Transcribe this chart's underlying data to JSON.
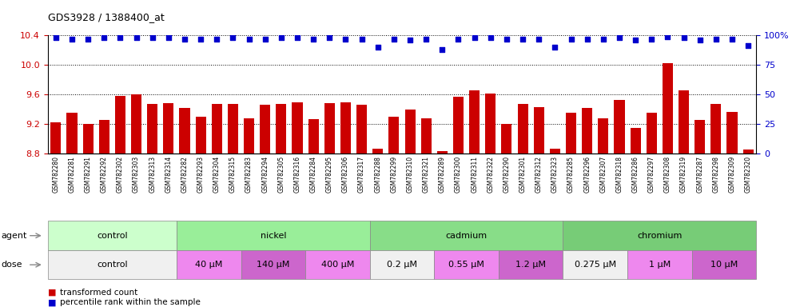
{
  "title": "GDS3928 / 1388400_at",
  "samples": [
    "GSM782280",
    "GSM782281",
    "GSM782291",
    "GSM782292",
    "GSM782302",
    "GSM782303",
    "GSM782313",
    "GSM782314",
    "GSM782282",
    "GSM782293",
    "GSM782304",
    "GSM782315",
    "GSM782283",
    "GSM782294",
    "GSM782305",
    "GSM782316",
    "GSM782284",
    "GSM782295",
    "GSM782306",
    "GSM782317",
    "GSM782288",
    "GSM782299",
    "GSM782310",
    "GSM782321",
    "GSM782289",
    "GSM782300",
    "GSM782311",
    "GSM782322",
    "GSM782290",
    "GSM782301",
    "GSM782312",
    "GSM782323",
    "GSM782285",
    "GSM782296",
    "GSM782307",
    "GSM782318",
    "GSM782286",
    "GSM782297",
    "GSM782308",
    "GSM782319",
    "GSM782287",
    "GSM782298",
    "GSM782309",
    "GSM782320"
  ],
  "bar_values": [
    9.22,
    9.35,
    9.2,
    9.25,
    9.58,
    9.6,
    9.47,
    9.48,
    9.42,
    9.3,
    9.47,
    9.47,
    9.28,
    9.46,
    9.47,
    9.49,
    9.27,
    9.48,
    9.49,
    9.46,
    8.87,
    9.3,
    9.39,
    9.28,
    8.83,
    9.57,
    9.65,
    9.61,
    9.2,
    9.47,
    9.43,
    8.87,
    9.35,
    9.42,
    9.28,
    9.52,
    9.15,
    9.35,
    10.02,
    9.65,
    9.25,
    9.47,
    9.36,
    8.85
  ],
  "percentile_values": [
    98,
    97,
    97,
    98,
    98,
    98,
    98,
    98,
    97,
    97,
    97,
    98,
    97,
    97,
    98,
    98,
    97,
    98,
    97,
    97,
    90,
    97,
    96,
    97,
    88,
    97,
    98,
    98,
    97,
    97,
    97,
    90,
    97,
    97,
    97,
    98,
    96,
    97,
    99,
    98,
    96,
    97,
    97,
    91
  ],
  "ylim_left": [
    8.8,
    10.4
  ],
  "ylim_right": [
    0,
    100
  ],
  "yticks_left": [
    8.8,
    9.2,
    9.6,
    10.0,
    10.4
  ],
  "yticks_right": [
    0,
    25,
    50,
    75,
    100
  ],
  "bar_color": "#cc0000",
  "dot_color": "#0000cc",
  "agent_groups": [
    {
      "label": "control",
      "start": 0,
      "end": 7,
      "color": "#ccffcc"
    },
    {
      "label": "nickel",
      "start": 8,
      "end": 19,
      "color": "#99ee99"
    },
    {
      "label": "cadmium",
      "start": 20,
      "end": 31,
      "color": "#88dd88"
    },
    {
      "label": "chromium",
      "start": 32,
      "end": 43,
      "color": "#77cc77"
    }
  ],
  "dose_groups": [
    {
      "label": "control",
      "start": 0,
      "end": 7,
      "color": "#f0f0f0"
    },
    {
      "label": "40 μM",
      "start": 8,
      "end": 11,
      "color": "#ee88ee"
    },
    {
      "label": "140 μM",
      "start": 12,
      "end": 15,
      "color": "#cc66cc"
    },
    {
      "label": "400 μM",
      "start": 16,
      "end": 19,
      "color": "#ee88ee"
    },
    {
      "label": "0.2 μM",
      "start": 20,
      "end": 23,
      "color": "#f0f0f0"
    },
    {
      "label": "0.55 μM",
      "start": 24,
      "end": 27,
      "color": "#ee88ee"
    },
    {
      "label": "1.2 μM",
      "start": 28,
      "end": 31,
      "color": "#cc66cc"
    },
    {
      "label": "0.275 μM",
      "start": 32,
      "end": 35,
      "color": "#f0f0f0"
    },
    {
      "label": "1 μM",
      "start": 36,
      "end": 39,
      "color": "#ee88ee"
    },
    {
      "label": "10 μM",
      "start": 40,
      "end": 43,
      "color": "#cc66cc"
    }
  ],
  "bg_color": "#ffffff"
}
